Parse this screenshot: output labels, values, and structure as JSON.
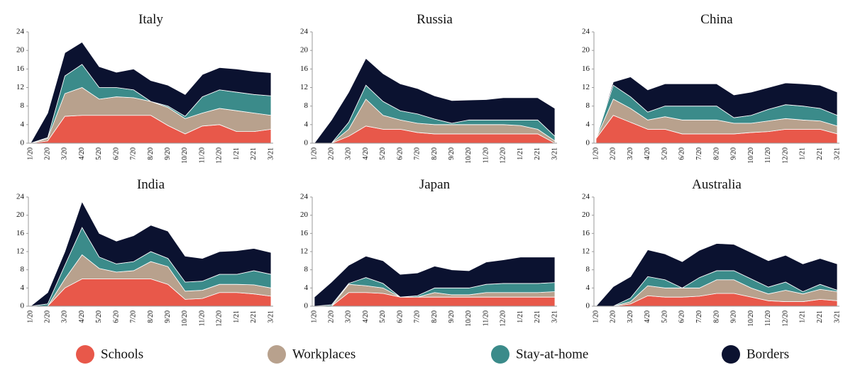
{
  "legend": {
    "series": [
      {
        "name": "Schools",
        "color": "#e8584a"
      },
      {
        "name": "Workplaces",
        "color": "#b8a18d"
      },
      {
        "name": "Stay-at-home",
        "color": "#3b8b8a"
      },
      {
        "name": "Borders",
        "color": "#0b1230"
      }
    ]
  },
  "chart_data": [
    {
      "type": "stacked-area",
      "title": "Italy",
      "categories": [
        "1/20",
        "2/20",
        "3/20",
        "4/20",
        "5/20",
        "6/20",
        "7/20",
        "8/20",
        "9/20",
        "10/20",
        "11/20",
        "12/20",
        "1/21",
        "2/21",
        "3/21"
      ],
      "ylim": [
        0,
        24
      ],
      "yticks": [
        0,
        4,
        8,
        12,
        16,
        20,
        24
      ],
      "series": [
        {
          "values": [
            0,
            0.5,
            5.8,
            6,
            6,
            6,
            6,
            6,
            3.8,
            2,
            3.7,
            4,
            2.5,
            2.5,
            3
          ]
        },
        {
          "values": [
            0,
            0.5,
            4.9,
            6,
            3.5,
            4,
            3.8,
            3,
            3.9,
            3.3,
            2.8,
            3.5,
            4.5,
            4,
            3
          ]
        },
        {
          "values": [
            0,
            0.2,
            3.8,
            5,
            2.5,
            2,
            1.7,
            0,
            0.3,
            0.5,
            3.5,
            4,
            4,
            4,
            4.2
          ]
        },
        {
          "values": [
            0,
            5.3,
            5,
            4.8,
            4.5,
            3.3,
            4.5,
            4.5,
            4.5,
            4.7,
            4.8,
            4.8,
            5,
            5,
            5
          ]
        }
      ]
    },
    {
      "type": "stacked-area",
      "title": "Russia",
      "categories": [
        "1/20",
        "2/20",
        "3/20",
        "4/20",
        "5/20",
        "6/20",
        "7/20",
        "8/20",
        "9/20",
        "10/20",
        "11/20",
        "12/20",
        "1/21",
        "2/21",
        "3/21"
      ],
      "ylim": [
        0,
        24
      ],
      "yticks": [
        0,
        4,
        8,
        12,
        16,
        20,
        24
      ],
      "series": [
        {
          "values": [
            0,
            0,
            1.5,
            3.7,
            3,
            3,
            2.3,
            2,
            2,
            2,
            2,
            2,
            2,
            2,
            0
          ]
        },
        {
          "values": [
            0,
            0,
            1.5,
            5.8,
            3,
            2,
            2,
            2,
            2,
            2,
            2,
            2,
            1.8,
            1,
            0.5
          ]
        },
        {
          "values": [
            0,
            0,
            1.5,
            3,
            3,
            2,
            2,
            1.2,
            0.3,
            1,
            1,
            1,
            1.2,
            2,
            1
          ]
        },
        {
          "values": [
            0,
            5,
            6.5,
            5.8,
            6,
            5.8,
            5.5,
            5,
            4.9,
            4.3,
            4.4,
            4.8,
            4.8,
            4.8,
            6
          ]
        }
      ]
    },
    {
      "type": "stacked-area",
      "title": "China",
      "categories": [
        "1/20",
        "2/20",
        "3/20",
        "4/20",
        "5/20",
        "6/20",
        "7/20",
        "8/20",
        "9/20",
        "10/20",
        "11/20",
        "12/20",
        "1/21",
        "2/21",
        "3/21"
      ],
      "ylim": [
        0,
        24
      ],
      "yticks": [
        0,
        4,
        8,
        12,
        16,
        20,
        24
      ],
      "series": [
        {
          "values": [
            1,
            6,
            4.5,
            3,
            3,
            2,
            2,
            2,
            2,
            2.3,
            2.5,
            3,
            3,
            3,
            2
          ]
        },
        {
          "values": [
            0,
            3.5,
            3,
            2,
            2.7,
            3,
            3,
            3,
            2.3,
            2,
            2.3,
            2.3,
            2,
            1.8,
            1.7
          ]
        },
        {
          "values": [
            0,
            3,
            2.5,
            1.7,
            2.3,
            3,
            3,
            3,
            1.2,
            1.7,
            2.5,
            3,
            3,
            2.7,
            2.3
          ]
        },
        {
          "values": [
            0,
            0.7,
            4.3,
            4.8,
            4.8,
            4.8,
            4.8,
            4.8,
            4.9,
            5,
            4.7,
            4.7,
            4.8,
            5,
            5
          ]
        }
      ]
    },
    {
      "type": "stacked-area",
      "title": "India",
      "categories": [
        "1/20",
        "2/20",
        "3/20",
        "4/20",
        "5/20",
        "6/20",
        "7/20",
        "8/20",
        "9/20",
        "10/20",
        "11/20",
        "12/20",
        "1/21",
        "2/21",
        "3/21"
      ],
      "ylim": [
        0,
        24
      ],
      "yticks": [
        0,
        4,
        8,
        12,
        16,
        20,
        24
      ],
      "series": [
        {
          "values": [
            0,
            0,
            4,
            6,
            6,
            6,
            6,
            6,
            4.8,
            1.5,
            1.7,
            3,
            3,
            2.7,
            2.2
          ]
        },
        {
          "values": [
            0,
            0,
            2,
            5.3,
            2.3,
            1.5,
            1.8,
            3.8,
            3.9,
            1.8,
            1.8,
            1.8,
            1.8,
            2,
            1.8
          ]
        },
        {
          "values": [
            0,
            0.5,
            3,
            6,
            2.5,
            1.8,
            2,
            2.2,
            1.8,
            2,
            2,
            2.2,
            2.2,
            3.1,
            3
          ]
        },
        {
          "values": [
            0,
            2.5,
            3,
            5.7,
            5.2,
            5,
            5.7,
            5.8,
            6,
            5.7,
            5,
            5,
            5.2,
            4.9,
            4.8
          ]
        }
      ]
    },
    {
      "type": "stacked-area",
      "title": "Japan",
      "categories": [
        "1/20",
        "2/20",
        "3/20",
        "4/20",
        "5/20",
        "6/20",
        "7/20",
        "8/20",
        "9/20",
        "10/20",
        "11/20",
        "12/20",
        "1/21",
        "2/21",
        "3/21"
      ],
      "ylim": [
        0,
        24
      ],
      "yticks": [
        0,
        4,
        8,
        12,
        16,
        20,
        24
      ],
      "series": [
        {
          "values": [
            0,
            0,
            3,
            3,
            2.8,
            2,
            2,
            2,
            2,
            2,
            2,
            2,
            2,
            2,
            2
          ]
        },
        {
          "values": [
            0,
            0,
            1.8,
            1.5,
            1.2,
            0,
            0,
            1,
            0.5,
            0.5,
            1,
            1,
            1,
            1,
            1.2
          ]
        },
        {
          "values": [
            0,
            0.3,
            0.2,
            1.8,
            1,
            0,
            0.3,
            1,
            1.5,
            1.5,
            1.8,
            2,
            2,
            2,
            2
          ]
        },
        {
          "values": [
            2,
            5,
            4,
            4.7,
            5,
            5,
            5,
            4.8,
            4,
            3.8,
            4.9,
            5.2,
            5.8,
            5.8,
            5.6
          ]
        }
      ]
    },
    {
      "type": "stacked-area",
      "title": "Australia",
      "categories": [
        "1/20",
        "2/20",
        "3/20",
        "4/20",
        "5/20",
        "6/20",
        "7/20",
        "8/20",
        "9/20",
        "10/20",
        "11/20",
        "12/20",
        "1/21",
        "2/21",
        "3/21"
      ],
      "ylim": [
        0,
        24
      ],
      "yticks": [
        0,
        4,
        8,
        12,
        16,
        20,
        24
      ],
      "series": [
        {
          "values": [
            0,
            0,
            0.5,
            2.3,
            2,
            2,
            2.2,
            2.8,
            2.8,
            2,
            1.2,
            1,
            1,
            1.5,
            1.2
          ]
        },
        {
          "values": [
            0,
            0,
            0.5,
            2.2,
            2,
            2,
            1.8,
            3,
            3,
            2,
            1.5,
            2.5,
            1.7,
            2.2,
            2
          ]
        },
        {
          "values": [
            0,
            0,
            0.8,
            2,
            1.8,
            0,
            2.3,
            2,
            2,
            2,
            1.5,
            1.8,
            0.5,
            1.1,
            0.3
          ]
        },
        {
          "values": [
            0,
            4.3,
            4.7,
            5.9,
            5.7,
            5.8,
            6,
            6,
            5.8,
            5.8,
            5.8,
            5.9,
            6.1,
            5.7,
            5.8
          ]
        }
      ]
    }
  ]
}
